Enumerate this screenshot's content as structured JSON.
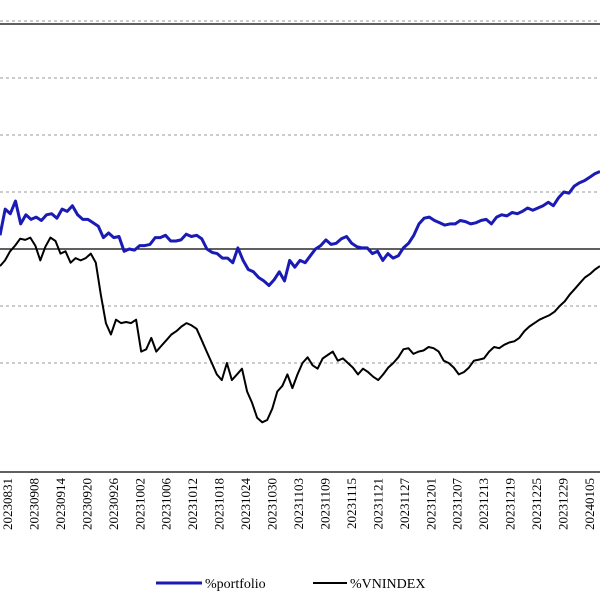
{
  "chart_data": {
    "type": "line",
    "title": "",
    "xlabel": "",
    "ylabel": "",
    "grid": "horizontal dashed",
    "legend_position": "bottom",
    "x_tick_labels": [
      "20230831",
      "20230908",
      "20230914",
      "20230920",
      "20230926",
      "20231002",
      "20231006",
      "20231012",
      "20231018",
      "20231024",
      "20231030",
      "20231103",
      "20231109",
      "20231115",
      "20231121",
      "20231127",
      "20231201",
      "20231207",
      "20231213",
      "20231219",
      "20231225",
      "20231229",
      "20240105"
    ],
    "y_gridlines": [
      -0.1,
      -0.05,
      0.0,
      0.05,
      0.1,
      0.15,
      0.2
    ],
    "ylim": [
      -0.125,
      0.23
    ],
    "series": [
      {
        "name": "%portfolio",
        "color": "#1a1ab4",
        "values": [
          0.012,
          0.035,
          0.031,
          0.042,
          0.022,
          0.03,
          0.026,
          0.028,
          0.025,
          0.03,
          0.031,
          0.027,
          0.035,
          0.033,
          0.038,
          0.03,
          0.026,
          0.026,
          0.023,
          0.02,
          0.01,
          0.014,
          0.01,
          0.011,
          -0.002,
          0.0,
          -0.001,
          0.003,
          0.003,
          0.004,
          0.01,
          0.01,
          0.012,
          0.007,
          0.007,
          0.008,
          0.013,
          0.011,
          0.012,
          0.009,
          0.0,
          -0.003,
          -0.004,
          -0.008,
          -0.008,
          -0.012,
          0.001,
          -0.01,
          -0.018,
          -0.02,
          -0.025,
          -0.028,
          -0.032,
          -0.027,
          -0.02,
          -0.028,
          -0.01,
          -0.016,
          -0.01,
          -0.012,
          -0.006,
          0.0,
          0.003,
          0.008,
          0.004,
          0.005,
          0.009,
          0.011,
          0.005,
          0.002,
          0.001,
          0.001,
          -0.004,
          -0.002,
          -0.01,
          -0.004,
          -0.008,
          -0.006,
          0.001,
          0.005,
          0.012,
          0.022,
          0.027,
          0.028,
          0.025,
          0.023,
          0.021,
          0.022,
          0.022,
          0.025,
          0.024,
          0.022,
          0.023,
          0.025,
          0.026,
          0.022,
          0.028,
          0.03,
          0.029,
          0.032,
          0.031,
          0.033,
          0.036,
          0.034,
          0.036,
          0.038,
          0.041,
          0.038,
          0.045,
          0.05,
          0.049,
          0.055,
          0.058,
          0.06,
          0.063,
          0.066,
          0.068
        ]
      },
      {
        "name": "%VNINDEX",
        "color": "#000000",
        "values": [
          -0.015,
          -0.01,
          -0.002,
          0.003,
          0.009,
          0.008,
          0.01,
          0.003,
          -0.01,
          0.002,
          0.01,
          0.007,
          -0.004,
          -0.002,
          -0.012,
          -0.008,
          -0.01,
          -0.008,
          -0.004,
          -0.012,
          -0.04,
          -0.065,
          -0.075,
          -0.062,
          -0.065,
          -0.064,
          -0.065,
          -0.062,
          -0.09,
          -0.088,
          -0.078,
          -0.09,
          -0.085,
          -0.08,
          -0.075,
          -0.072,
          -0.068,
          -0.065,
          -0.067,
          -0.07,
          -0.08,
          -0.09,
          -0.1,
          -0.11,
          -0.115,
          -0.1,
          -0.115,
          -0.11,
          -0.105,
          -0.125,
          -0.135,
          -0.148,
          -0.152,
          -0.15,
          -0.14,
          -0.125,
          -0.12,
          -0.11,
          -0.122,
          -0.11,
          -0.1,
          -0.095,
          -0.102,
          -0.105,
          -0.096,
          -0.093,
          -0.09,
          -0.098,
          -0.096,
          -0.1,
          -0.104,
          -0.11,
          -0.105,
          -0.108,
          -0.112,
          -0.115,
          -0.11,
          -0.104,
          -0.1,
          -0.095,
          -0.088,
          -0.087,
          -0.092,
          -0.09,
          -0.089,
          -0.086,
          -0.087,
          -0.09,
          -0.098,
          -0.1,
          -0.104,
          -0.11,
          -0.108,
          -0.104,
          -0.098,
          -0.097,
          -0.096,
          -0.09,
          -0.086,
          -0.087,
          -0.084,
          -0.082,
          -0.081,
          -0.078,
          -0.072,
          -0.068,
          -0.065,
          -0.062,
          -0.06,
          -0.058,
          -0.055,
          -0.05,
          -0.046,
          -0.04,
          -0.035,
          -0.03,
          -0.025,
          -0.022,
          -0.018,
          -0.015
        ]
      }
    ],
    "legend": [
      {
        "label": "%portfolio",
        "color": "#1a1ab4"
      },
      {
        "label": "%VNINDEX",
        "color": "#000000"
      }
    ]
  }
}
